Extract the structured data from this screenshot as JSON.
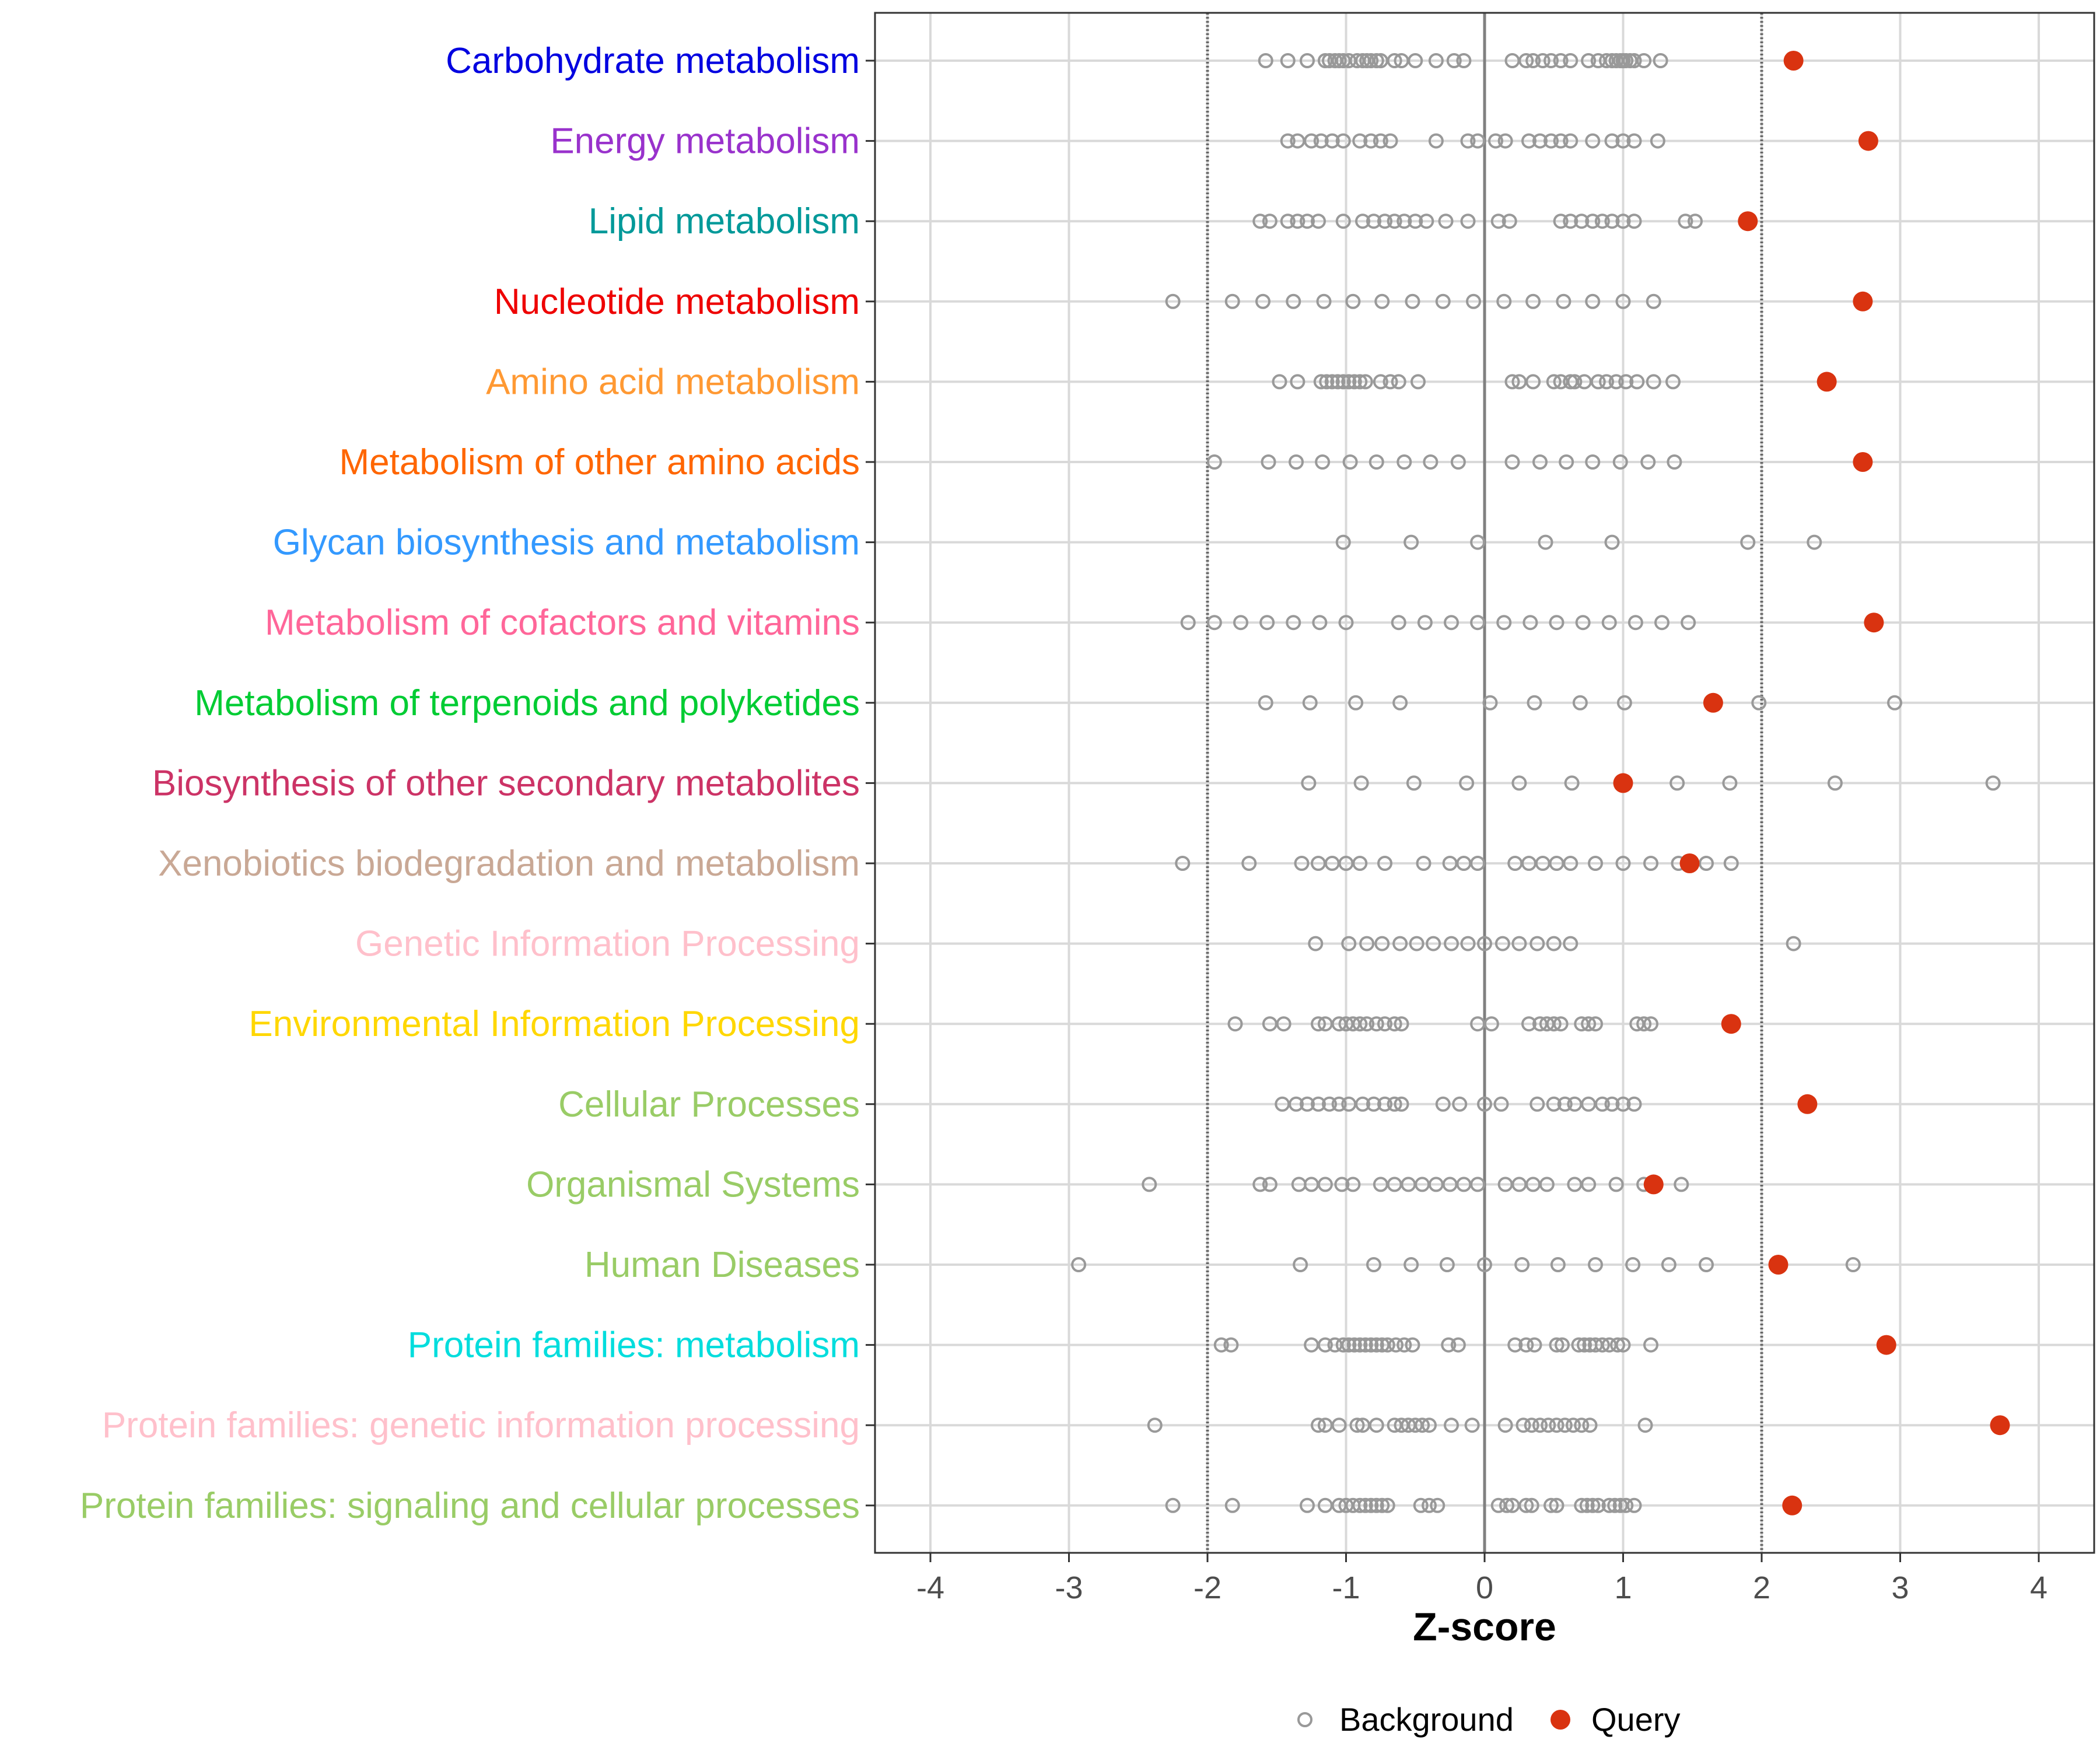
{
  "chart_data": {
    "type": "scatter",
    "xlabel": "Z-score",
    "xlim": [
      -4.4,
      4.4
    ],
    "xticks": [
      -4,
      -3,
      -2,
      -1,
      0,
      1,
      2,
      3,
      4
    ],
    "xtick_labels": [
      "-4",
      "-3",
      "-2",
      "-1",
      "0",
      "1",
      "2",
      "3",
      "4"
    ],
    "reference_lines": [
      -2,
      2
    ],
    "legend": {
      "position": "bottom",
      "entries": [
        {
          "name": "Background",
          "style": "open-circle",
          "color": "#999999"
        },
        {
          "name": "Query",
          "style": "filled-circle",
          "color": "#d93310"
        }
      ]
    },
    "categories": [
      {
        "label": "Carbohydrate metabolism",
        "color": "#0000e0",
        "query": 2.23,
        "background": [
          -1.58,
          -1.42,
          -1.28,
          -1.15,
          -1.12,
          -1.08,
          -1.05,
          -1.02,
          -0.98,
          -0.92,
          -0.88,
          -0.85,
          -0.82,
          -0.78,
          -0.75,
          -0.65,
          -0.6,
          -0.5,
          -0.35,
          -0.22,
          -0.15,
          0.2,
          0.3,
          0.35,
          0.42,
          0.48,
          0.55,
          0.62,
          0.75,
          0.82,
          0.88,
          0.92,
          0.95,
          0.98,
          1.0,
          1.02,
          1.05,
          1.08,
          1.15,
          1.27
        ]
      },
      {
        "label": "Energy metabolism",
        "color": "#9932cc",
        "query": 2.77,
        "background": [
          -1.42,
          -1.35,
          -1.25,
          -1.18,
          -1.1,
          -1.02,
          -0.9,
          -0.82,
          -0.75,
          -0.68,
          -0.35,
          -0.12,
          -0.05,
          0.08,
          0.15,
          0.32,
          0.4,
          0.48,
          0.55,
          0.62,
          0.78,
          0.92,
          1.0,
          1.08,
          1.25
        ]
      },
      {
        "label": "Lipid metabolism",
        "color": "#009999",
        "query": 1.9,
        "background": [
          -1.62,
          -1.55,
          -1.42,
          -1.35,
          -1.28,
          -1.2,
          -1.02,
          -0.88,
          -0.8,
          -0.72,
          -0.65,
          -0.58,
          -0.5,
          -0.42,
          -0.28,
          -0.12,
          0.1,
          0.18,
          0.55,
          0.62,
          0.7,
          0.78,
          0.85,
          0.92,
          1.0,
          1.08,
          1.45,
          1.52
        ]
      },
      {
        "label": "Nucleotide metabolism",
        "color": "#ee0000",
        "query": 2.73,
        "background": [
          -2.25,
          -1.82,
          -1.6,
          -1.38,
          -1.16,
          -0.95,
          -0.74,
          -0.52,
          -0.3,
          -0.08,
          0.14,
          0.35,
          0.57,
          0.78,
          1.0,
          1.22
        ]
      },
      {
        "label": "Amino acid metabolism",
        "color": "#ff9933",
        "query": 2.47,
        "background": [
          -1.48,
          -1.35,
          -1.18,
          -1.14,
          -1.1,
          -1.06,
          -1.02,
          -0.98,
          -0.94,
          -0.9,
          -0.86,
          -0.75,
          -0.68,
          -0.62,
          -0.48,
          0.2,
          0.25,
          0.35,
          0.5,
          0.55,
          0.62,
          0.65,
          0.72,
          0.82,
          0.88,
          0.95,
          1.02,
          1.1,
          1.22,
          1.36
        ]
      },
      {
        "label": "Metabolism of other amino acids",
        "color": "#ff6600",
        "query": 2.73,
        "background": [
          -1.95,
          -1.56,
          -1.36,
          -1.17,
          -0.97,
          -0.78,
          -0.58,
          -0.39,
          -0.19,
          0.2,
          0.4,
          0.59,
          0.78,
          0.98,
          1.18,
          1.37
        ]
      },
      {
        "label": "Glycan biosynthesis and metabolism",
        "color": "#3399ff",
        "query": null,
        "background": [
          -1.02,
          -0.53,
          -0.05,
          0.44,
          0.92,
          1.9,
          2.38
        ]
      },
      {
        "label": "Metabolism of cofactors and vitamins",
        "color": "#ff6699",
        "query": 2.81,
        "background": [
          -2.14,
          -1.95,
          -1.76,
          -1.57,
          -1.38,
          -1.19,
          -1.0,
          -0.62,
          -0.43,
          -0.24,
          -0.05,
          0.14,
          0.33,
          0.52,
          0.71,
          0.9,
          1.09,
          1.28,
          1.47
        ]
      },
      {
        "label": "Metabolism of terpenoids and polyketides",
        "color": "#00cc33",
        "query": 1.65,
        "background": [
          -1.58,
          -1.26,
          -0.93,
          -0.61,
          0.04,
          0.36,
          0.69,
          1.01,
          1.98,
          2.96
        ]
      },
      {
        "label": "Biosynthesis of other secondary metabolites",
        "color": "#cc3366",
        "query": 1.0,
        "background": [
          -1.27,
          -0.89,
          -0.51,
          -0.13,
          0.25,
          0.63,
          1.39,
          1.77,
          2.53,
          3.67
        ]
      },
      {
        "label": "Xenobiotics biodegradation and metabolism",
        "color": "#c9a895",
        "query": 1.48,
        "background": [
          -2.18,
          -1.7,
          -1.32,
          -1.2,
          -1.1,
          -1.0,
          -0.9,
          -0.72,
          -0.44,
          -0.25,
          -0.15,
          -0.05,
          0.22,
          0.32,
          0.42,
          0.52,
          0.62,
          0.8,
          1.0,
          1.2,
          1.4,
          1.6,
          1.78
        ]
      },
      {
        "label": "Genetic Information Processing",
        "color": "#ffc0cb",
        "query": null,
        "background": [
          -1.22,
          -0.98,
          -0.85,
          -0.74,
          -0.61,
          -0.49,
          -0.37,
          -0.24,
          -0.12,
          0.0,
          0.13,
          0.25,
          0.38,
          0.5,
          0.62,
          2.23
        ]
      },
      {
        "label": "Environmental Information Processing",
        "color": "#ffd700",
        "query": 1.78,
        "background": [
          -1.8,
          -1.55,
          -1.45,
          -1.2,
          -1.15,
          -1.05,
          -1.0,
          -0.95,
          -0.9,
          -0.85,
          -0.78,
          -0.72,
          -0.65,
          -0.6,
          -0.05,
          0.05,
          0.32,
          0.4,
          0.45,
          0.5,
          0.55,
          0.7,
          0.75,
          0.8,
          1.1,
          1.15,
          1.2
        ]
      },
      {
        "label": "Cellular Processes",
        "color": "#99cc66",
        "query": 2.33,
        "background": [
          -1.46,
          -1.36,
          -1.28,
          -1.2,
          -1.12,
          -1.05,
          -0.98,
          -0.88,
          -0.8,
          -0.72,
          -0.65,
          -0.6,
          -0.3,
          -0.18,
          0.0,
          0.12,
          0.38,
          0.5,
          0.58,
          0.65,
          0.75,
          0.85,
          0.92,
          1.0,
          1.08
        ]
      },
      {
        "label": "Organismal Systems",
        "color": "#99cc66",
        "query": 1.22,
        "background": [
          -2.42,
          -1.62,
          -1.55,
          -1.34,
          -1.25,
          -1.15,
          -1.03,
          -0.95,
          -0.75,
          -0.65,
          -0.55,
          -0.45,
          -0.35,
          -0.25,
          -0.15,
          -0.05,
          0.15,
          0.25,
          0.35,
          0.45,
          0.65,
          0.75,
          0.95,
          1.15,
          1.42
        ]
      },
      {
        "label": "Human Diseases",
        "color": "#99cc66",
        "query": 2.12,
        "background": [
          -2.93,
          -1.33,
          -0.8,
          -0.53,
          -0.27,
          0.0,
          0.27,
          0.53,
          0.8,
          1.07,
          1.33,
          1.6,
          2.66
        ]
      },
      {
        "label": "Protein families: metabolism",
        "color": "#00dddd",
        "query": 2.9,
        "background": [
          -1.9,
          -1.83,
          -1.25,
          -1.15,
          -1.08,
          -1.02,
          -0.98,
          -0.94,
          -0.9,
          -0.86,
          -0.82,
          -0.78,
          -0.74,
          -0.7,
          -0.64,
          -0.58,
          -0.52,
          -0.26,
          -0.19,
          0.22,
          0.3,
          0.36,
          0.52,
          0.56,
          0.68,
          0.72,
          0.76,
          0.8,
          0.85,
          0.9,
          0.96,
          1.0,
          1.2
        ]
      },
      {
        "label": "Protein families: genetic information processing",
        "color": "#ffc0cb",
        "query": 3.72,
        "background": [
          -2.38,
          -1.2,
          -1.15,
          -1.05,
          -0.92,
          -0.88,
          -0.78,
          -0.65,
          -0.6,
          -0.55,
          -0.5,
          -0.45,
          -0.4,
          -0.24,
          -0.09,
          0.15,
          0.28,
          0.34,
          0.4,
          0.46,
          0.52,
          0.58,
          0.64,
          0.7,
          0.76,
          1.16
        ]
      },
      {
        "label": "Protein families: signaling and cellular processes",
        "color": "#99cc66",
        "query": 2.22,
        "background": [
          -2.25,
          -1.82,
          -1.28,
          -1.15,
          -1.05,
          -1.0,
          -0.95,
          -0.9,
          -0.86,
          -0.82,
          -0.78,
          -0.74,
          -0.7,
          -0.46,
          -0.4,
          -0.34,
          0.1,
          0.16,
          0.2,
          0.3,
          0.34,
          0.48,
          0.52,
          0.7,
          0.74,
          0.78,
          0.82,
          0.9,
          0.94,
          0.98,
          1.02,
          1.08
        ]
      }
    ]
  }
}
